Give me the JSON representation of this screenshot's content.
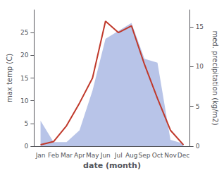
{
  "chart_data": {
    "type": "line",
    "categories": [
      "Jan",
      "Feb",
      "Mar",
      "Apr",
      "May",
      "Jun",
      "Jul",
      "Aug",
      "Sep",
      "Oct",
      "Nov",
      "Dec"
    ],
    "series": [
      {
        "type": "area",
        "axis": "y2",
        "color": "#b8c4e8",
        "values": [
          3.2,
          0.5,
          0.5,
          2.0,
          7.0,
          13.5,
          14.5,
          15.5,
          11.0,
          10.5,
          0.8,
          0.3
        ]
      },
      {
        "type": "line",
        "color": "#c0392b",
        "values": [
          0.3,
          1.0,
          4.5,
          9.5,
          15.0,
          27.5,
          25.0,
          26.5,
          18.0,
          10.5,
          3.5,
          0.3
        ]
      }
    ],
    "xlabel": "date (month)",
    "ylabel": "max temp (C)",
    "y2label": "med. precipitation (kg/m2)",
    "ylim": [
      0,
      30
    ],
    "yticks": [
      0,
      5,
      10,
      15,
      20,
      25
    ],
    "y2lim": [
      0,
      17.14
    ],
    "y2ticks": [
      0,
      5,
      10,
      15
    ],
    "grid": false
  }
}
